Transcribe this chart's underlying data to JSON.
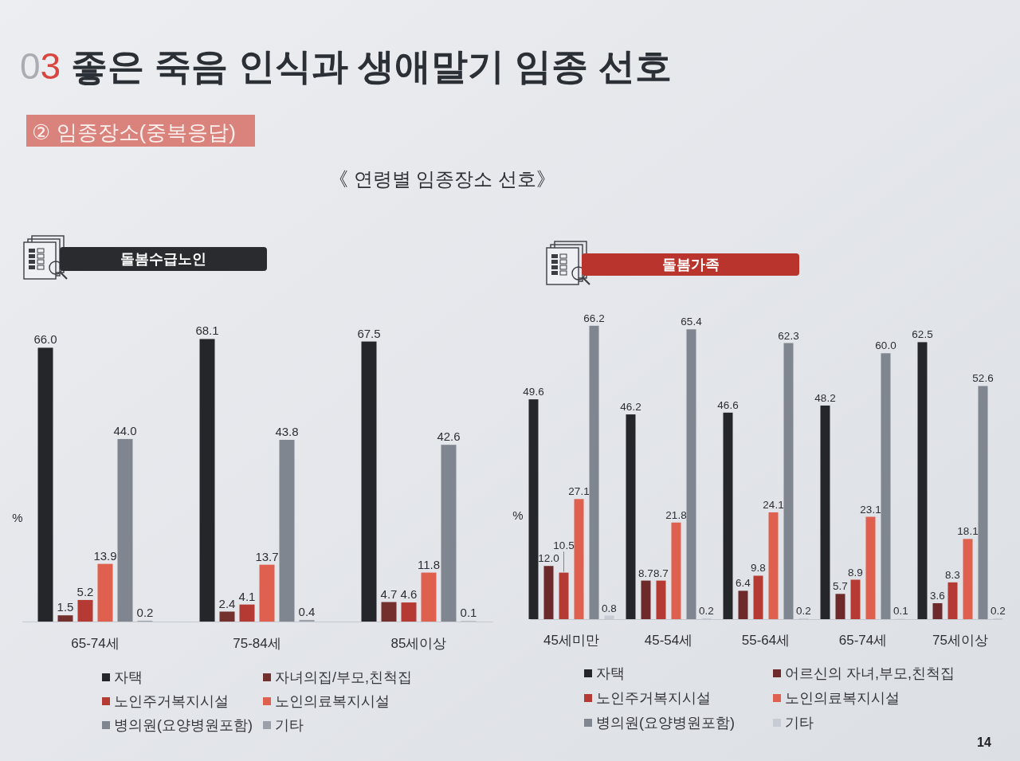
{
  "chart_data": [
    {
      "type": "bar",
      "title": "돌봄수급노인",
      "ylabel": "%",
      "categories": [
        "65-74세",
        "75-84세",
        "85세이상"
      ],
      "series": [
        {
          "name": "자택",
          "color": "#25262a",
          "values": [
            66.0,
            68.1,
            67.5
          ],
          "value_labels": [
            "66.0",
            "68.1",
            "67.5"
          ]
        },
        {
          "name": "자녀의집/부모,친척집",
          "color": "#74302d",
          "values": [
            1.5,
            2.4,
            4.7
          ],
          "value_labels": [
            "1.5",
            "2.4",
            "4.7"
          ]
        },
        {
          "name": "노인주거복지시설",
          "color": "#b53a33",
          "values": [
            5.2,
            4.1,
            4.6
          ],
          "value_labels": [
            "5.2",
            "4.1",
            "4.6"
          ]
        },
        {
          "name": "노인의료복지시설",
          "color": "#e0604f",
          "values": [
            13.9,
            13.7,
            11.8
          ],
          "value_labels": [
            "13.9",
            "13.7",
            "11.8"
          ]
        },
        {
          "name": "병의원(요양병원포함)",
          "color": "#7f8690",
          "values": [
            44.0,
            43.8,
            42.6
          ],
          "value_labels": [
            "44.0",
            "43.8",
            "42.6"
          ]
        },
        {
          "name": "기타",
          "color": "#9aa1aa",
          "values": [
            0.2,
            0.4,
            0.1
          ],
          "value_labels": [
            "0.2",
            "0.4",
            "0.1"
          ]
        }
      ],
      "legend": "bottom",
      "annotations": [
        "03 좋은 죽음 인식과 생애말기 임종 선호",
        "② 임종장소(중복응답)",
        "《 연령별 임종장소 선호》"
      ]
    },
    {
      "type": "bar",
      "title": "돌봄가족",
      "ylabel": "%",
      "categories": [
        "45세미만",
        "45-54세",
        "55-64세",
        "65-74세",
        "75세이상"
      ],
      "series": [
        {
          "name": "자택",
          "color": "#25262a",
          "values": [
            49.6,
            46.2,
            46.6,
            48.2,
            62.5
          ],
          "value_labels": [
            "49.6",
            "46.2",
            "46.6",
            "48.2",
            "62.5"
          ]
        },
        {
          "name": "어르신의 자녀,부모,친척집",
          "color": "#6e2a2a",
          "values": [
            12.0,
            8.7,
            6.4,
            5.7,
            3.6
          ],
          "value_labels": [
            "12.0",
            "8.7",
            "6.4",
            "5.7",
            "3.6"
          ]
        },
        {
          "name": "노인주거복지시설",
          "color": "#b53a33",
          "values": [
            10.5,
            8.7,
            9.8,
            8.9,
            8.3
          ],
          "value_labels": [
            "10.5",
            "8.7",
            "9.8",
            "8.9",
            "8.3"
          ]
        },
        {
          "name": "노인의료복지시설",
          "color": "#e0604f",
          "values": [
            27.1,
            21.8,
            24.1,
            23.1,
            18.1
          ],
          "value_labels": [
            "27.1",
            "21.8",
            "24.1",
            "23.1",
            "18.1"
          ]
        },
        {
          "name": "병의원(요양병원포함)",
          "color": "#7f8690",
          "values": [
            66.2,
            65.4,
            62.3,
            60.0,
            52.6
          ],
          "value_labels": [
            "66.2",
            "65.4",
            "62.3",
            "60.0",
            "52.6"
          ]
        },
        {
          "name": "기타",
          "color": "#c7ccd4",
          "values": [
            0.8,
            0.2,
            0.2,
            0.1,
            0.2
          ],
          "value_labels": [
            "0.8",
            "0.2",
            "0.2",
            "0.1",
            "0.2"
          ]
        }
      ],
      "legend": "bottom",
      "annotations": [
        "14"
      ]
    }
  ]
}
